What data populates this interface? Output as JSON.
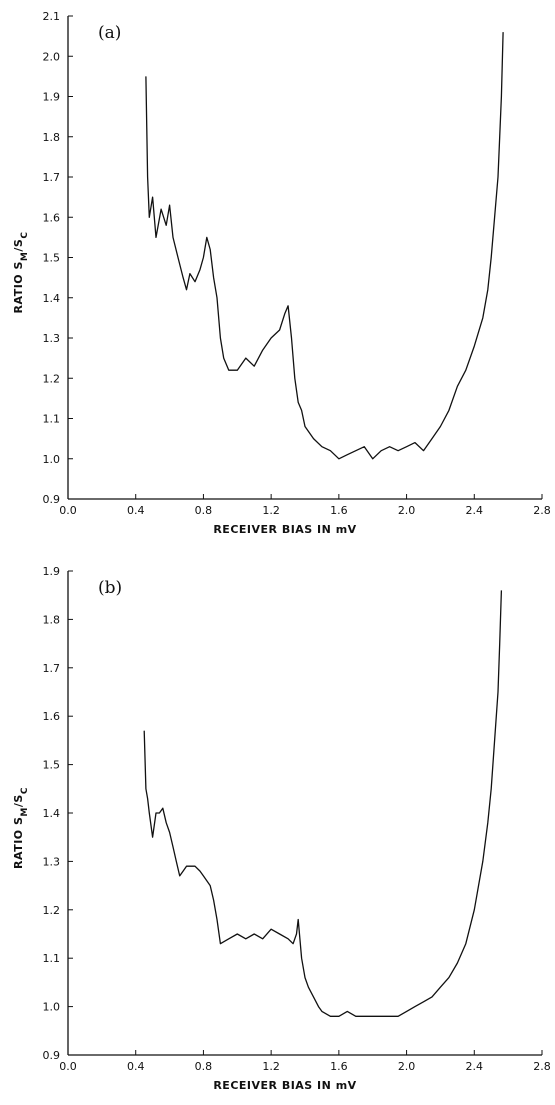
{
  "chart_data": [
    {
      "type": "line",
      "panel_label": "(a)",
      "xlabel": "RECEIVER BIAS IN mV",
      "ylabel_text": "RATIO  S",
      "ylabel_sub1": "M",
      "ylabel_mid": "/S",
      "ylabel_sub2": "C",
      "xlim": [
        0.0,
        2.8
      ],
      "ylim": [
        0.9,
        2.1
      ],
      "x_ticks": [
        "0.0",
        "0.4",
        "0.8",
        "1.2",
        "1.6",
        "2.0",
        "2.4",
        "2.8"
      ],
      "y_ticks": [
        "0.9",
        "1.0",
        "1.1",
        "1.2",
        "1.3",
        "1.4",
        "1.5",
        "1.6",
        "1.7",
        "1.8",
        "1.9",
        "2.0",
        "2.1"
      ],
      "grid": false,
      "series": [
        {
          "x": [
            0.46,
            0.47,
            0.48,
            0.5,
            0.52,
            0.55,
            0.58,
            0.6,
            0.62,
            0.65,
            0.68,
            0.7,
            0.72,
            0.75,
            0.78,
            0.8,
            0.82,
            0.84,
            0.86,
            0.88,
            0.9,
            0.92,
            0.95,
            1.0,
            1.05,
            1.1,
            1.15,
            1.2,
            1.25,
            1.28,
            1.3,
            1.32,
            1.34,
            1.36,
            1.38,
            1.4,
            1.45,
            1.5,
            1.55,
            1.6,
            1.65,
            1.7,
            1.75,
            1.8,
            1.85,
            1.9,
            1.95,
            2.0,
            2.05,
            2.1,
            2.15,
            2.2,
            2.25,
            2.3,
            2.35,
            2.4,
            2.45,
            2.48,
            2.5,
            2.52,
            2.54,
            2.55,
            2.56,
            2.57
          ],
          "y": [
            1.95,
            1.7,
            1.6,
            1.65,
            1.55,
            1.62,
            1.58,
            1.63,
            1.55,
            1.5,
            1.45,
            1.42,
            1.46,
            1.44,
            1.47,
            1.5,
            1.55,
            1.52,
            1.45,
            1.4,
            1.3,
            1.25,
            1.22,
            1.22,
            1.25,
            1.23,
            1.27,
            1.3,
            1.32,
            1.36,
            1.38,
            1.3,
            1.2,
            1.14,
            1.12,
            1.08,
            1.05,
            1.03,
            1.02,
            1.0,
            1.01,
            1.02,
            1.03,
            1.0,
            1.02,
            1.03,
            1.02,
            1.03,
            1.04,
            1.02,
            1.05,
            1.08,
            1.12,
            1.18,
            1.22,
            1.28,
            1.35,
            1.42,
            1.5,
            1.6,
            1.7,
            1.8,
            1.9,
            2.06
          ]
        }
      ]
    },
    {
      "type": "line",
      "panel_label": "(b)",
      "xlabel": "RECEIVER BIAS IN mV",
      "ylabel_text": "RATIO  S",
      "ylabel_sub1": "M",
      "ylabel_mid": "/S",
      "ylabel_sub2": "C",
      "xlim": [
        0.0,
        2.8
      ],
      "ylim": [
        0.9,
        1.9
      ],
      "x_ticks": [
        "0.0",
        "0.4",
        "0.8",
        "1.2",
        "1.6",
        "2.0",
        "2.4",
        "2.8"
      ],
      "y_ticks": [
        "0.9",
        "1.0",
        "1.1",
        "1.2",
        "1.3",
        "1.4",
        "1.5",
        "1.6",
        "1.7",
        "1.8",
        "1.9"
      ],
      "grid": false,
      "series": [
        {
          "x": [
            0.45,
            0.46,
            0.47,
            0.48,
            0.5,
            0.52,
            0.54,
            0.56,
            0.58,
            0.6,
            0.62,
            0.64,
            0.66,
            0.68,
            0.7,
            0.72,
            0.75,
            0.78,
            0.8,
            0.82,
            0.84,
            0.86,
            0.88,
            0.9,
            0.95,
            1.0,
            1.05,
            1.1,
            1.15,
            1.2,
            1.25,
            1.3,
            1.33,
            1.35,
            1.36,
            1.38,
            1.4,
            1.42,
            1.45,
            1.48,
            1.5,
            1.55,
            1.6,
            1.65,
            1.7,
            1.75,
            1.8,
            1.85,
            1.9,
            1.95,
            2.0,
            2.05,
            2.1,
            2.15,
            2.2,
            2.25,
            2.3,
            2.35,
            2.4,
            2.45,
            2.48,
            2.5,
            2.52,
            2.54,
            2.55,
            2.56
          ],
          "y": [
            1.57,
            1.45,
            1.43,
            1.4,
            1.35,
            1.4,
            1.4,
            1.41,
            1.38,
            1.36,
            1.33,
            1.3,
            1.27,
            1.28,
            1.29,
            1.29,
            1.29,
            1.28,
            1.27,
            1.26,
            1.25,
            1.22,
            1.18,
            1.13,
            1.14,
            1.15,
            1.14,
            1.15,
            1.14,
            1.16,
            1.15,
            1.14,
            1.13,
            1.15,
            1.18,
            1.1,
            1.06,
            1.04,
            1.02,
            1.0,
            0.99,
            0.98,
            0.98,
            0.99,
            0.98,
            0.98,
            0.98,
            0.98,
            0.98,
            0.98,
            0.99,
            1.0,
            1.01,
            1.02,
            1.04,
            1.06,
            1.09,
            1.13,
            1.2,
            1.3,
            1.38,
            1.45,
            1.55,
            1.65,
            1.75,
            1.86
          ]
        }
      ]
    }
  ]
}
